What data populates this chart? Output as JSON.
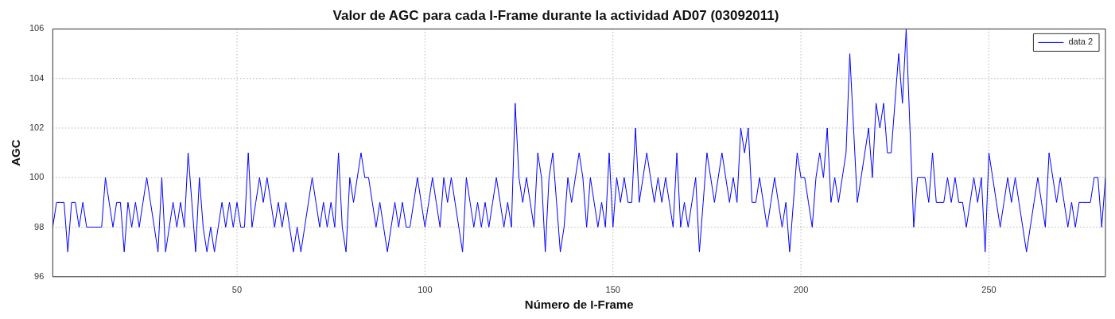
{
  "chart_data": {
    "type": "line",
    "title": "Valor de AGC para cada I-Frame durante la actividad AD07 (03092011)",
    "xlabel": "Número de I-Frame",
    "ylabel": "AGC",
    "x": [
      1,
      2,
      3,
      4,
      5,
      6,
      7,
      8,
      9,
      10,
      11,
      12,
      13,
      14,
      15,
      16,
      17,
      18,
      19,
      20,
      21,
      22,
      23,
      24,
      25,
      26,
      27,
      28,
      29,
      30,
      31,
      32,
      33,
      34,
      35,
      36,
      37,
      38,
      39,
      40,
      41,
      42,
      43,
      44,
      45,
      46,
      47,
      48,
      49,
      50,
      51,
      52,
      53,
      54,
      55,
      56,
      57,
      58,
      59,
      60,
      61,
      62,
      63,
      64,
      65,
      66,
      67,
      68,
      69,
      70,
      71,
      72,
      73,
      74,
      75,
      76,
      77,
      78,
      79,
      80,
      81,
      82,
      83,
      84,
      85,
      86,
      87,
      88,
      89,
      90,
      91,
      92,
      93,
      94,
      95,
      96,
      97,
      98,
      99,
      100,
      101,
      102,
      103,
      104,
      105,
      106,
      107,
      108,
      109,
      110,
      111,
      112,
      113,
      114,
      115,
      116,
      117,
      118,
      119,
      120,
      121,
      122,
      123,
      124,
      125,
      126,
      127,
      128,
      129,
      130,
      131,
      132,
      133,
      134,
      135,
      136,
      137,
      138,
      139,
      140,
      141,
      142,
      143,
      144,
      145,
      146,
      147,
      148,
      149,
      150,
      151,
      152,
      153,
      154,
      155,
      156,
      157,
      158,
      159,
      160,
      161,
      162,
      163,
      164,
      165,
      166,
      167,
      168,
      169,
      170,
      171,
      172,
      173,
      174,
      175,
      176,
      177,
      178,
      179,
      180,
      181,
      182,
      183,
      184,
      185,
      186,
      187,
      188,
      189,
      190,
      191,
      192,
      193,
      194,
      195,
      196,
      197,
      198,
      199,
      200,
      201,
      202,
      203,
      204,
      205,
      206,
      207,
      208,
      209,
      210,
      211,
      212,
      213,
      214,
      215,
      216,
      217,
      218,
      219,
      220,
      221,
      222,
      223,
      224,
      225,
      226,
      227,
      228,
      229,
      230,
      231,
      232,
      233,
      234,
      235,
      236,
      237,
      238,
      239,
      240,
      241,
      242,
      243,
      244,
      245,
      246,
      247,
      248,
      249,
      250,
      251,
      252,
      253,
      254,
      255,
      256,
      257,
      258,
      259,
      260,
      261,
      262,
      263,
      264,
      265,
      266,
      267,
      268,
      269,
      270,
      271,
      272,
      273,
      274,
      275,
      276,
      277,
      278,
      279,
      280,
      281
    ],
    "series": [
      {
        "name": "data 2",
        "color": "#0000ff",
        "values": [
          98,
          99,
          99,
          99,
          97,
          99,
          99,
          98,
          99,
          98,
          98,
          98,
          98,
          98,
          100,
          99,
          98,
          99,
          99,
          97,
          99,
          98,
          99,
          98,
          99,
          100,
          99,
          98,
          97,
          100,
          97,
          98,
          99,
          98,
          99,
          98,
          101,
          99,
          97,
          100,
          98,
          97,
          98,
          97,
          98,
          99,
          98,
          99,
          98,
          99,
          98,
          98,
          101,
          98,
          99,
          100,
          99,
          100,
          99,
          98,
          99,
          98,
          99,
          98,
          97,
          98,
          97,
          98,
          99,
          100,
          99,
          98,
          99,
          98,
          99,
          98,
          101,
          98,
          97,
          100,
          99,
          100,
          101,
          100,
          100,
          99,
          98,
          99,
          98,
          97,
          98,
          99,
          98,
          99,
          98,
          98,
          99,
          100,
          99,
          98,
          99,
          100,
          99,
          98,
          100,
          99,
          100,
          99,
          98,
          97,
          100,
          99,
          98,
          99,
          98,
          99,
          98,
          99,
          100,
          99,
          98,
          99,
          98,
          103,
          100,
          99,
          100,
          99,
          98,
          101,
          100,
          97,
          100,
          101,
          99,
          97,
          98,
          100,
          99,
          100,
          101,
          100,
          98,
          100,
          99,
          98,
          99,
          98,
          101,
          98,
          100,
          99,
          100,
          99,
          99,
          102,
          99,
          100,
          101,
          100,
          99,
          100,
          99,
          100,
          99,
          98,
          101,
          98,
          99,
          98,
          99,
          100,
          97,
          99,
          101,
          100,
          99,
          100,
          101,
          100,
          99,
          100,
          99,
          102,
          101,
          102,
          99,
          99,
          100,
          99,
          98,
          99,
          100,
          99,
          98,
          99,
          97,
          99,
          101,
          100,
          100,
          99,
          98,
          100,
          101,
          100,
          102,
          99,
          100,
          99,
          100,
          101,
          105,
          102,
          99,
          100,
          101,
          102,
          100,
          103,
          102,
          103,
          101,
          101,
          103,
          105,
          103,
          106,
          102,
          98,
          100,
          100,
          100,
          99,
          101,
          99,
          99,
          99,
          100,
          99,
          100,
          99,
          99,
          98,
          99,
          100,
          99,
          100,
          97,
          101,
          100,
          99,
          98,
          99,
          100,
          99,
          100,
          99,
          98,
          97,
          98,
          99,
          100,
          99,
          98,
          101,
          100,
          99,
          100,
          99,
          98,
          99,
          98,
          99,
          99,
          99,
          99,
          100,
          100,
          98,
          100
        ]
      }
    ],
    "xlim": [
      1,
      281
    ],
    "xticks": [
      50,
      100,
      150,
      200,
      250
    ],
    "ylim": [
      96,
      106
    ],
    "yticks": [
      96,
      98,
      100,
      102,
      104,
      106
    ],
    "grid": true,
    "legend": "top right",
    "line_style": "solid",
    "marker": "none"
  }
}
